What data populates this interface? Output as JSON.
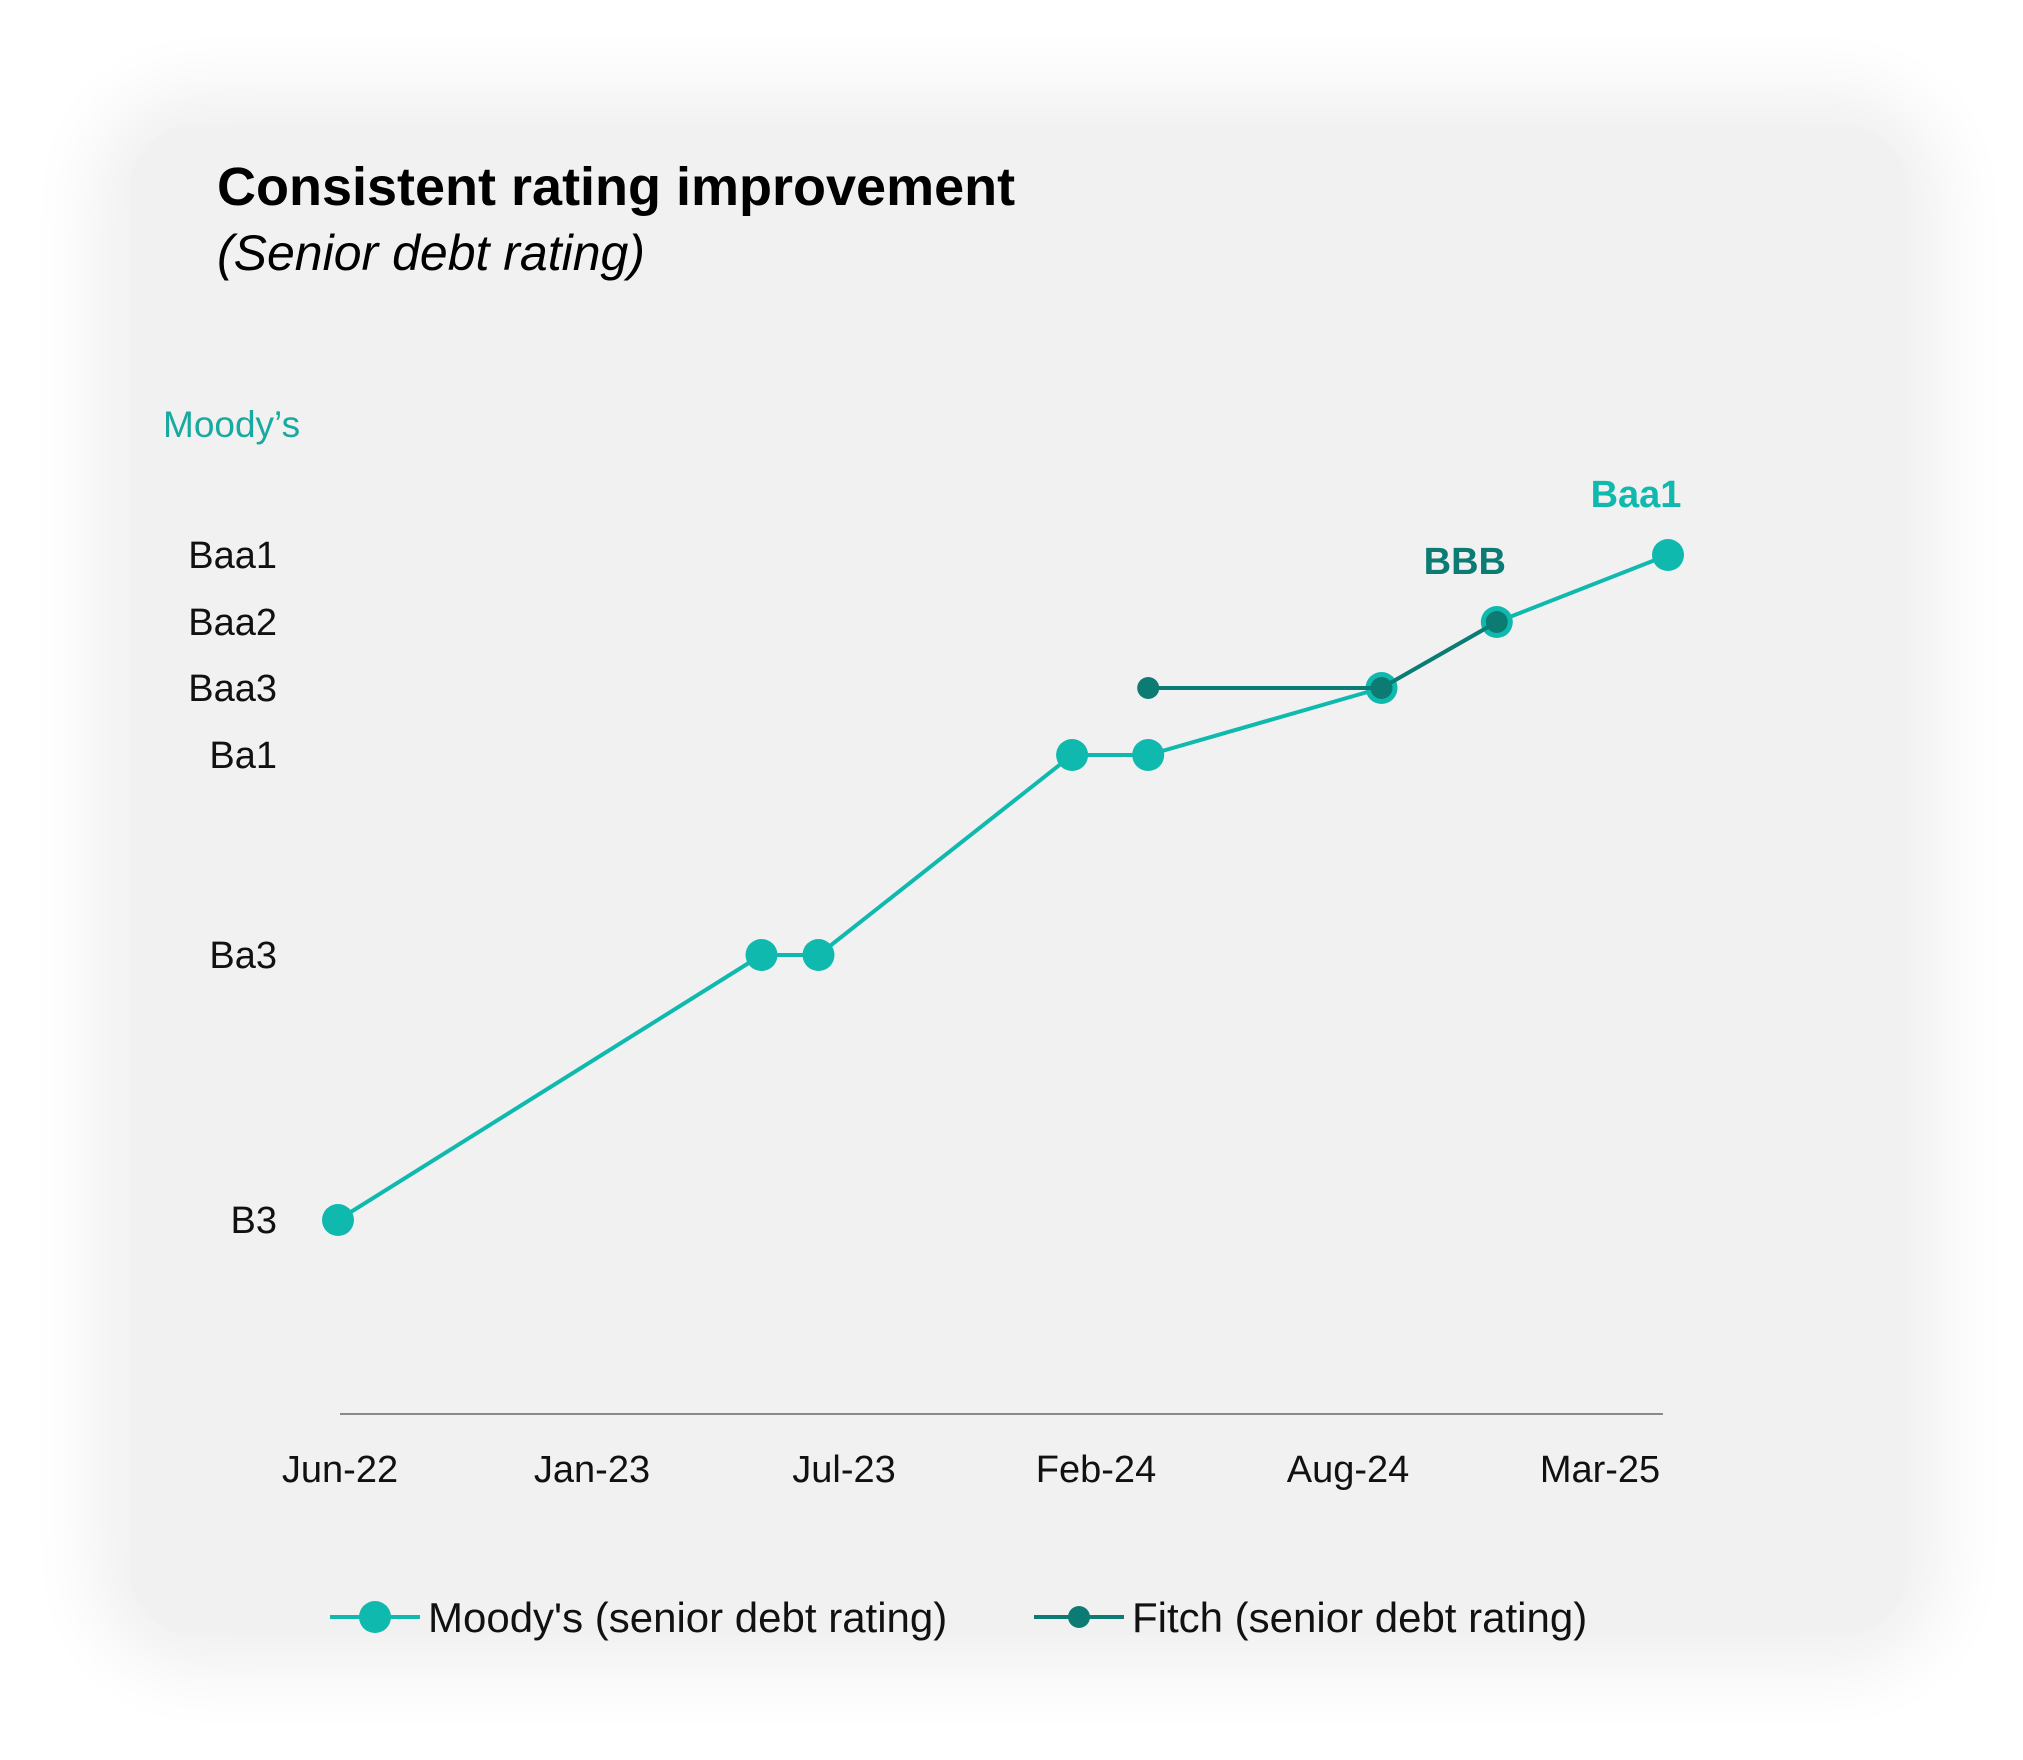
{
  "chart_data": {
    "type": "line",
    "title": "Consistent rating improvement",
    "subtitle": "(Senior debt rating)",
    "y_axis_title": "Moody’s",
    "x_tick_labels": [
      "Jun-22",
      "Jan-23",
      "Jul-23",
      "Feb-24",
      "Aug-24",
      "Mar-25"
    ],
    "x_range": [
      "2022-06-01",
      "2025-04-15"
    ],
    "y_tick_labels": [
      "B3",
      "Ba3",
      "Ba1",
      "Baa3",
      "Baa2",
      "Baa1"
    ],
    "grid": false,
    "legend_position": "bottom",
    "colors": {
      "moodys": "#0fb9ad",
      "fitch": "#0c7b74"
    },
    "series": [
      {
        "name": "Moody's (senior debt rating)",
        "points": [
          {
            "x": "2022-06-01",
            "y": "B3"
          },
          {
            "x": "2023-05-01",
            "y": "Ba3"
          },
          {
            "x": "2023-06-15",
            "y": "Ba3"
          },
          {
            "x": "2024-01-01",
            "y": "Ba1"
          },
          {
            "x": "2024-03-01",
            "y": "Ba1"
          },
          {
            "x": "2024-09-01",
            "y": "Baa3"
          },
          {
            "x": "2024-12-01",
            "y": "Baa2"
          },
          {
            "x": "2025-04-15",
            "y": "Baa1"
          }
        ]
      },
      {
        "name": "Fitch (senior debt rating)",
        "points": [
          {
            "x": "2024-03-01",
            "y": "Baa3"
          },
          {
            "x": "2024-09-01",
            "y": "Baa3"
          },
          {
            "x": "2024-12-01",
            "y": "Baa2"
          }
        ]
      }
    ],
    "annotations": [
      {
        "text": "BBB",
        "series": "Fitch (senior debt rating)"
      },
      {
        "text": "Baa1",
        "series": "Moody's (senior debt rating)"
      }
    ]
  }
}
